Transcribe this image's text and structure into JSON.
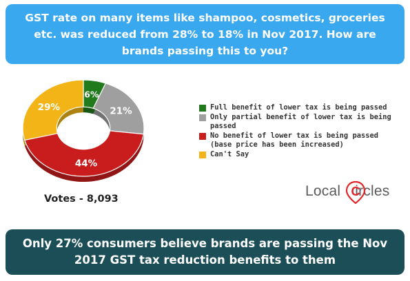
{
  "question": "GST rate on many items like shampoo, cosmetics, groceries etc. was reduced from 28% to 18% in Nov 2017. How are brands passing this to you?",
  "votes_label": "Votes - 8,093",
  "logo": {
    "text_pre": "Local",
    "text_post": "ircles",
    "mark": "C"
  },
  "conclusion": "Only 27% consumers believe brands are passing the Nov 2017 GST tax reduction benefits to them",
  "colors": {
    "banner_top": "#3aa8ee",
    "banner_bottom": "#1b4e56",
    "logo_red": "#e0262b"
  },
  "chart_data": {
    "type": "pie",
    "style": "donut",
    "categories": [
      "Full benefit of lower tax is being passed",
      "Only partial benefit of lower tax is being passed",
      "No benefit of lower tax is being passed\n(base price has been increased)",
      "Can't Say"
    ],
    "values": [
      6,
      21,
      44,
      29
    ],
    "labels": [
      "6%",
      "21%",
      "44%",
      "29%"
    ],
    "colors": [
      "#217a1c",
      "#9f9f9f",
      "#c91d1d",
      "#f2b416"
    ],
    "legend_position": "right"
  }
}
